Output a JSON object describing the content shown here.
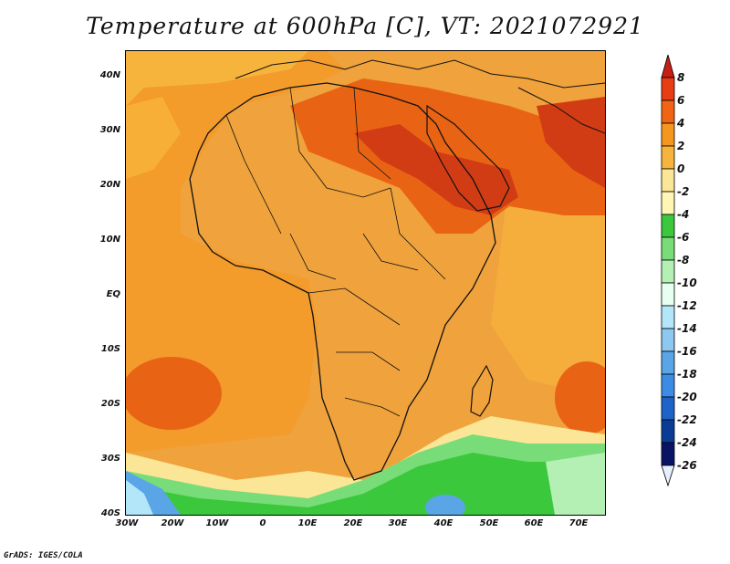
{
  "title": "Temperature at 600hPa [C], VT: 2021072921",
  "footer": "GrADS: IGES/COLA",
  "y_axis": [
    "40N",
    "30N",
    "20N",
    "10N",
    "EQ",
    "10S",
    "20S",
    "30S",
    "40S"
  ],
  "x_axis": [
    "30W",
    "20W",
    "10W",
    "0",
    "10E",
    "20E",
    "30E",
    "40E",
    "50E",
    "60E",
    "70E"
  ],
  "colorbar": {
    "labels": [
      "8",
      "6",
      "4",
      "2",
      "0",
      "-2",
      "-4",
      "-6",
      "-8",
      "-10",
      "-12",
      "-14",
      "-16",
      "-18",
      "-20",
      "-22",
      "-24",
      "-26"
    ],
    "colors": [
      "#c81e14",
      "#e83c14",
      "#f06414",
      "#f5961e",
      "#f7b43c",
      "#fae696",
      "#fff5b4",
      "#3cc83c",
      "#78dc78",
      "#b4f0b4",
      "#e6fff0",
      "#b4e6fa",
      "#8cc8f0",
      "#5aa5e6",
      "#3c8ce6",
      "#1e64c8",
      "#0a3c96",
      "#0a1464"
    ]
  },
  "map_layers": {
    "background": "#f0a23c",
    "warm": "#f5961e",
    "hot": "#e86414",
    "hottest": "#d23c14",
    "mild": "#f7b43c",
    "cool": "#fae696",
    "green": "#3cc83c",
    "lightgreen": "#78dc78",
    "blue": "#5aa5e6",
    "lightblue": "#b4e6fa"
  }
}
